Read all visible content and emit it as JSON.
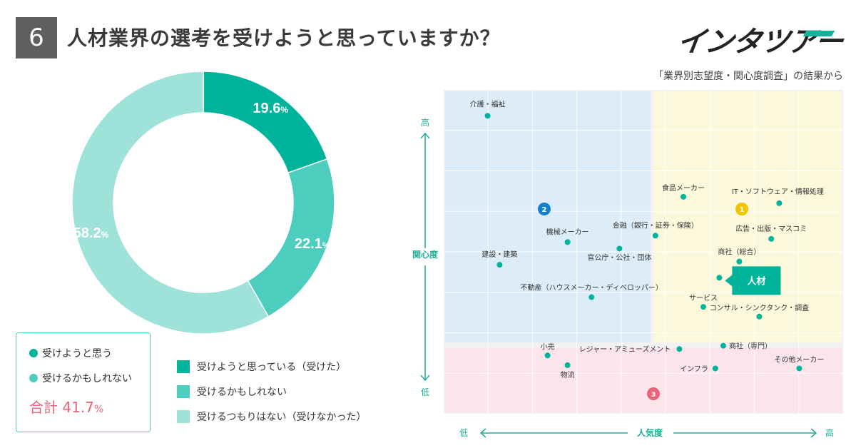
{
  "header": {
    "question_number": "6",
    "title": "人材業界の選考を受けようと思っていますか？",
    "logo_text": "インタツアー",
    "source_note": "「業界別志望度・関心度調査」の結果から"
  },
  "colors": {
    "dark": "#00b39b",
    "medium": "#4ccdbe",
    "light": "#9ee2d9",
    "accent_red": "#e8637a",
    "zone_blue": "#dcedf9",
    "zone_yellow": "#fcf8db",
    "zone_pink": "#fce5ea",
    "axis": "#1fae96"
  },
  "legend_box": {
    "item1": "受けようと思う",
    "item2": "受けるかもしれない",
    "total_label": "合計",
    "total_value": "41.7",
    "total_unit": "%"
  },
  "legend": {
    "item1": "受けようと思っている（受けた）",
    "item2": "受けるかもしれない",
    "item3": "受けるつもりはない（受けなかった）"
  },
  "chart_data": [
    {
      "type": "pie",
      "donut": true,
      "title": "人材業界の選考を受けようと思っていますか？",
      "unit": "%",
      "categories": [
        "受けようと思っている（受けた）",
        "受けるかもしれない",
        "受けるつもりはない（受けなかった）"
      ],
      "values": [
        19.6,
        22.1,
        58.2
      ],
      "labels": [
        "19.6",
        "22.1",
        "58.2"
      ]
    },
    {
      "type": "scatter",
      "title": "「業界別志望度・関心度調査」の結果から",
      "xlabel": "人気度",
      "ylabel": "関心度",
      "x_low": "低",
      "x_high": "高",
      "y_low": "低",
      "y_high": "高",
      "xlim": [
        0,
        100
      ],
      "ylim": [
        0,
        100
      ],
      "zones": [
        {
          "label": "1",
          "name": "high popularity / high interest"
        },
        {
          "label": "2",
          "name": "low popularity / high interest"
        },
        {
          "label": "3",
          "name": "low interest"
        }
      ],
      "points": [
        {
          "name": "介護・福祉",
          "x": 11,
          "y": 92
        },
        {
          "name": "食品メーカー",
          "x": 60,
          "y": 67
        },
        {
          "name": "IT・ソフトウェア・情報処理",
          "x": 84,
          "y": 65
        },
        {
          "name": "金融（銀行・証券・保険）",
          "x": 53,
          "y": 55
        },
        {
          "name": "広告・出版・マスコミ",
          "x": 82,
          "y": 54
        },
        {
          "name": "機械メーカー",
          "x": 31,
          "y": 53
        },
        {
          "name": "官公庁・公社・団体",
          "x": 44,
          "y": 51
        },
        {
          "name": "建設・建築",
          "x": 14,
          "y": 46
        },
        {
          "name": "商社（総合）",
          "x": 74,
          "y": 47
        },
        {
          "name": "人材",
          "x": 69,
          "y": 42,
          "highlight": true
        },
        {
          "name": "不動産（ハウスメーカー・ディベロッパー）",
          "x": 37,
          "y": 36
        },
        {
          "name": "サービス",
          "x": 65,
          "y": 33
        },
        {
          "name": "コンサル・シンクタンク・調査",
          "x": 79,
          "y": 30
        },
        {
          "name": "商社（専門）",
          "x": 70,
          "y": 21
        },
        {
          "name": "レジャー・アミューズメント",
          "x": 59,
          "y": 20
        },
        {
          "name": "小売",
          "x": 26,
          "y": 18
        },
        {
          "name": "物流",
          "x": 31,
          "y": 15
        },
        {
          "name": "インフラ",
          "x": 68,
          "y": 14
        },
        {
          "name": "その他メーカー",
          "x": 89,
          "y": 14
        }
      ]
    }
  ]
}
